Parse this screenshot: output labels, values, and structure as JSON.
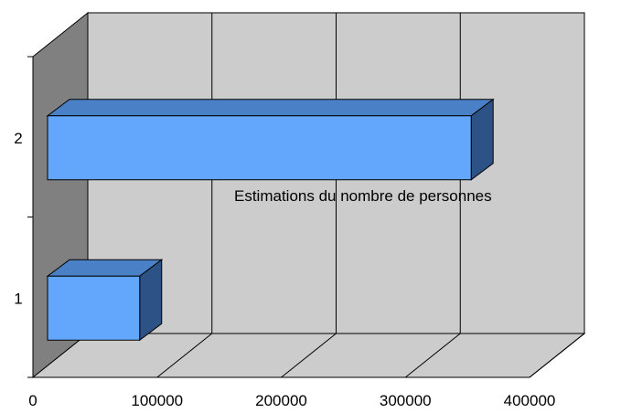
{
  "chart_data": {
    "type": "bar",
    "orientation": "horizontal",
    "three_d": true,
    "categories": [
      "1",
      "2"
    ],
    "values": [
      86000,
      353000
    ],
    "xlim": [
      0,
      400000
    ],
    "x_ticks": [
      "0",
      "100000",
      "200000",
      "300000",
      "400000"
    ],
    "annotation": "Estimations du nombre de personnes",
    "grid": true,
    "legend": "none",
    "colors": {
      "bar_front": "#62a7fc",
      "bar_top": "#4a80c6",
      "bar_side": "#2d5386",
      "wall_back": "#cccccc",
      "wall_left": "#808080",
      "floor": "#cccccc",
      "grid": "#000000"
    }
  }
}
